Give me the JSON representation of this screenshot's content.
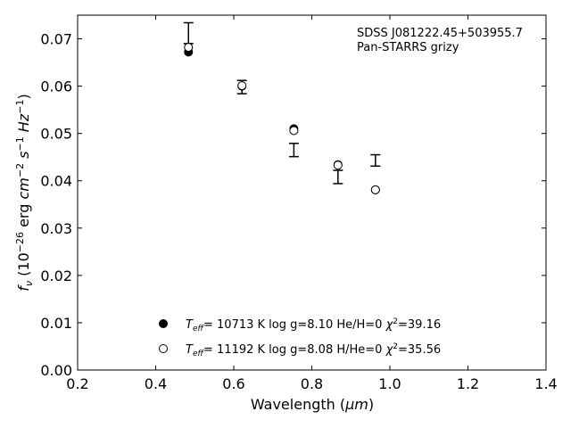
{
  "chart_data": {
    "type": "scatter",
    "title": "",
    "annotation_lines": [
      "SDSS J081222.45+503955.7",
      "Pan-STARRS grizy"
    ],
    "xlabel": {
      "main": "Wavelength (",
      "unit": "μm",
      "close": ")"
    },
    "ylabel": {
      "f": "f",
      "nu": "ν",
      "open": " (10",
      "exp26": "−26",
      "erg": " erg ",
      "cm": "cm",
      "expm2": "−2",
      "s": " s",
      "expm1a": "−1",
      "hz": " Hz",
      "expm1b": "−1",
      "close": ")"
    },
    "xlim": [
      0.2,
      1.4
    ],
    "ylim": [
      0.0,
      0.075
    ],
    "xticks": [
      "0.2",
      "0.4",
      "0.6",
      "0.8",
      "1.0",
      "1.2",
      "1.4"
    ],
    "xtick_values": [
      0.2,
      0.4,
      0.6,
      0.8,
      1.0,
      1.2,
      1.4
    ],
    "yticks": [
      "0.00",
      "0.01",
      "0.02",
      "0.03",
      "0.04",
      "0.05",
      "0.06",
      "0.07"
    ],
    "ytick_values": [
      0.0,
      0.01,
      0.02,
      0.03,
      0.04,
      0.05,
      0.06,
      0.07
    ],
    "grid": false,
    "legend_position": "lower-center",
    "observed": {
      "x": [
        0.484,
        0.621,
        0.754,
        0.867,
        0.963
      ],
      "y": [
        0.0712,
        0.0598,
        0.0465,
        0.0408,
        0.0443
      ],
      "yerr": [
        0.0022,
        0.0014,
        0.0014,
        0.0014,
        0.0012
      ]
    },
    "series": [
      {
        "label_parts": {
          "t": "T",
          "sub": "eff",
          "rest": "= 10713 K  log g=8.10  He/H=0  ",
          "chi": "χ",
          "sup": "2",
          "val": "=39.16"
        },
        "marker": "filled",
        "x": [
          0.484,
          0.621,
          0.754,
          0.867,
          0.963
        ],
        "y": [
          0.0672,
          0.06,
          0.051,
          0.0434,
          0.0381
        ]
      },
      {
        "label_parts": {
          "t": "T",
          "sub": "eff",
          "rest": "= 11192 K  log g=8.08  H/He=0  ",
          "chi": "χ",
          "sup": "2",
          "val": "=35.56"
        },
        "marker": "open",
        "x": [
          0.484,
          0.621,
          0.754,
          0.867,
          0.963
        ],
        "y": [
          0.0682,
          0.0601,
          0.0506,
          0.0433,
          0.0381
        ]
      }
    ]
  }
}
